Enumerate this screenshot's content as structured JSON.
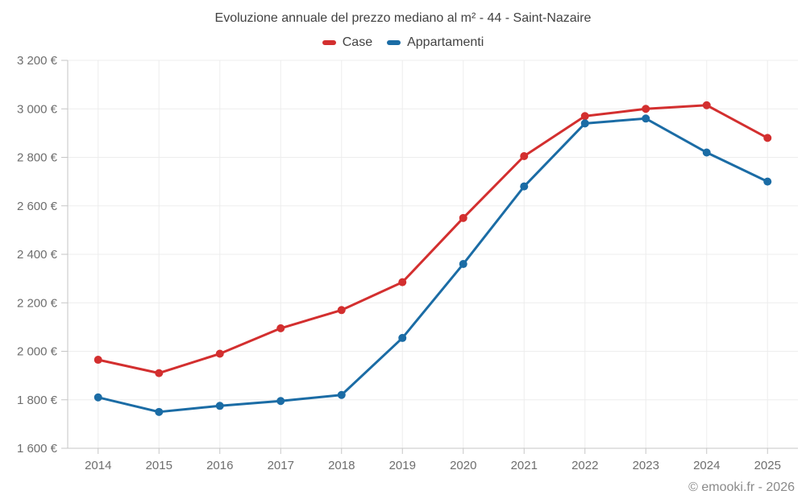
{
  "title": "Evoluzione annuale del prezzo mediano al m² - 44 - Saint-Nazaire",
  "footer": "© emooki.fr - 2026",
  "legend": {
    "items": [
      {
        "label": "Case",
        "color": "#d32f2f"
      },
      {
        "label": "Appartamenti",
        "color": "#1b6ca5"
      }
    ]
  },
  "colors": {
    "grid": "#ededed",
    "axis": "#c6c6c6",
    "tick_text": "#6e6e6e",
    "title_text": "#424242",
    "footer_text": "#8a8a8a",
    "background": "#ffffff"
  },
  "chart_data": {
    "type": "line",
    "title": "Evoluzione annuale del prezzo mediano al m² - 44 - Saint-Nazaire",
    "xlabel": "",
    "ylabel": "",
    "legend_position": "top",
    "grid": true,
    "marker": "circle",
    "categories": [
      "2014",
      "2015",
      "2016",
      "2017",
      "2018",
      "2019",
      "2020",
      "2021",
      "2022",
      "2023",
      "2024",
      "2025"
    ],
    "series": [
      {
        "name": "Case",
        "color": "#d32f2f",
        "values": [
          1965,
          1910,
          1990,
          2095,
          2170,
          2285,
          2550,
          2805,
          2970,
          3000,
          3015,
          2880
        ]
      },
      {
        "name": "Appartamenti",
        "color": "#1b6ca5",
        "values": [
          1810,
          1750,
          1775,
          1795,
          1820,
          2055,
          2360,
          2680,
          2940,
          2960,
          2820,
          2700
        ]
      }
    ],
    "ylim": [
      1600,
      3200
    ],
    "ytick_step": 200,
    "yticks": [
      {
        "value": 1600,
        "label": "1 600 €"
      },
      {
        "value": 1800,
        "label": "1 800 €"
      },
      {
        "value": 2000,
        "label": "2 000 €"
      },
      {
        "value": 2200,
        "label": "2 200 €"
      },
      {
        "value": 2400,
        "label": "2 400 €"
      },
      {
        "value": 2600,
        "label": "2 600 €"
      },
      {
        "value": 2800,
        "label": "2 800 €"
      },
      {
        "value": 3000,
        "label": "3 000 €"
      },
      {
        "value": 3200,
        "label": "3 200 €"
      }
    ]
  }
}
